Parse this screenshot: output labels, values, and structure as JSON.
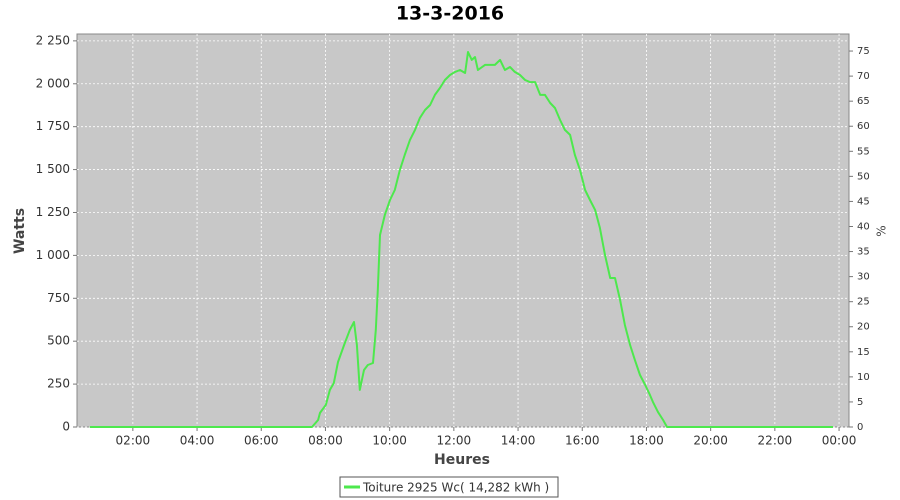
{
  "chart_data": {
    "type": "line",
    "title": "13-3-2016",
    "xlabel": "Heures",
    "ylabel": "Watts",
    "y2label": "%",
    "xlim": [
      0.26,
      24.31
    ],
    "xticks": [
      {
        "value": 2,
        "label": "02:00"
      },
      {
        "value": 4,
        "label": "04:00"
      },
      {
        "value": 6,
        "label": "06:00"
      },
      {
        "value": 8,
        "label": "08:00"
      },
      {
        "value": 10,
        "label": "10:00"
      },
      {
        "value": 12,
        "label": "12:00"
      },
      {
        "value": 14,
        "label": "14:00"
      },
      {
        "value": 16,
        "label": "16:00"
      },
      {
        "value": 18,
        "label": "18:00"
      },
      {
        "value": 20,
        "label": "20:00"
      },
      {
        "value": 22,
        "label": "22:00"
      },
      {
        "value": 24,
        "label": "00:00"
      }
    ],
    "ylim": [
      0,
      2290
    ],
    "yticks": [
      0,
      250,
      500,
      750,
      {
        "value": 1000,
        "label": "1 000"
      },
      {
        "value": 1250,
        "label": "1 250"
      },
      {
        "value": 1500,
        "label": "1 500"
      },
      {
        "value": 1750,
        "label": "1 750"
      },
      {
        "value": 2000,
        "label": "2 000"
      },
      {
        "value": 2250,
        "label": "2 250"
      }
    ],
    "y2lim": [
      0,
      78.4
    ],
    "y2ticks": [
      0,
      5,
      10,
      15,
      20,
      25,
      30,
      35,
      40,
      45,
      50,
      55,
      60,
      65,
      70,
      75
    ],
    "grid": true,
    "legend": "bottom",
    "x": [
      0.66,
      7.58,
      7.77,
      7.83,
      8.01,
      8.14,
      8.26,
      8.39,
      8.58,
      8.76,
      8.89,
      8.98,
      9.07,
      9.2,
      9.32,
      9.48,
      9.57,
      9.63,
      9.7,
      9.85,
      10.01,
      10.16,
      10.32,
      10.47,
      10.63,
      10.79,
      10.94,
      11.1,
      11.26,
      11.41,
      11.57,
      11.72,
      11.88,
      12.04,
      12.19,
      12.35,
      12.44,
      12.56,
      12.66,
      12.75,
      12.97,
      13.28,
      13.44,
      13.59,
      13.75,
      13.9,
      14.06,
      14.22,
      14.37,
      14.53,
      14.69,
      14.84,
      15,
      15.15,
      15.31,
      15.46,
      15.62,
      15.77,
      15.93,
      16.09,
      16.24,
      16.4,
      16.55,
      16.71,
      16.87,
      17.02,
      17.18,
      17.33,
      17.49,
      17.64,
      17.8,
      17.96,
      18.11,
      18.2,
      18.36,
      18.52,
      18.64,
      23.81
    ],
    "series": [
      {
        "name": "Toiture 2925 Wc( 14,282 kWh )",
        "color": "#4de84d",
        "values": [
          0,
          0,
          41,
          82,
          128,
          216,
          256,
          379,
          478,
          565,
          612,
          478,
          216,
          332,
          361,
          373,
          565,
          798,
          1119,
          1235,
          1323,
          1381,
          1498,
          1585,
          1672,
          1731,
          1800,
          1847,
          1876,
          1935,
          1976,
          2022,
          2051,
          2069,
          2080,
          2063,
          2185,
          2139,
          2156,
          2080,
          2110,
          2110,
          2139,
          2080,
          2098,
          2069,
          2051,
          2022,
          2010,
          2010,
          1935,
          1935,
          1888,
          1859,
          1789,
          1731,
          1702,
          1585,
          1498,
          1381,
          1323,
          1265,
          1160,
          1002,
          868,
          868,
          740,
          594,
          478,
          390,
          303,
          245,
          186,
          146,
          87,
          41,
          0,
          0
        ]
      }
    ]
  }
}
